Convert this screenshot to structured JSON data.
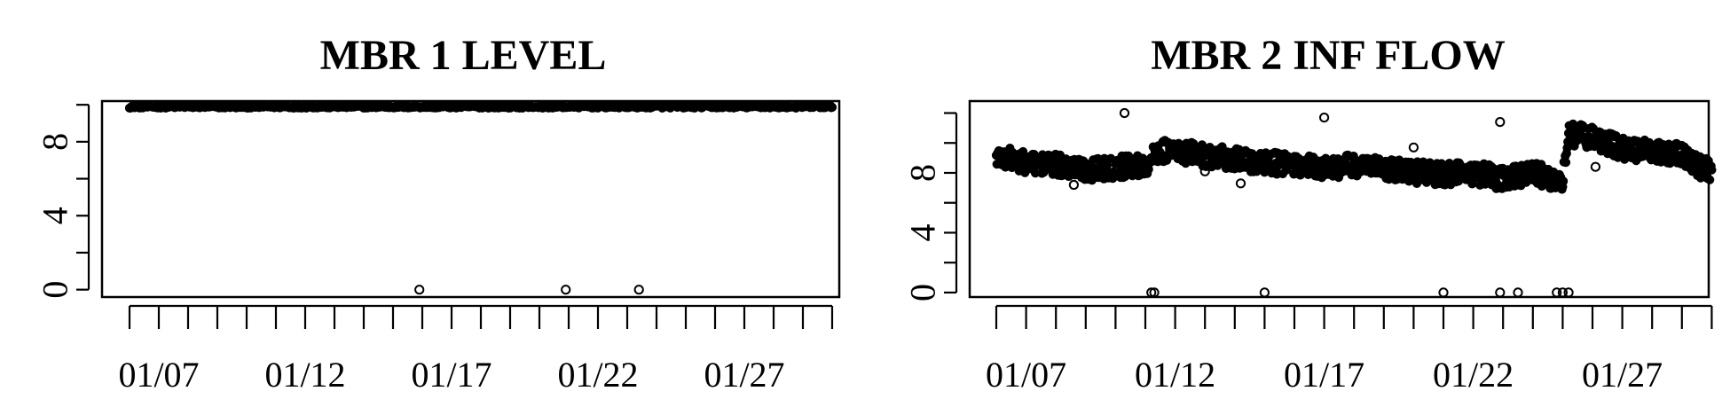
{
  "chart_data": [
    {
      "type": "scatter",
      "title": "MBR 1 LEVEL",
      "xlabel": "",
      "ylabel": "",
      "ylim": [
        -0.4,
        10.2
      ],
      "xlim": [
        "2024-01-05",
        "2024-01-31"
      ],
      "y_tick_labels": [
        "0",
        "4",
        "8"
      ],
      "x_tick_labels": [
        "01/07",
        "01/12",
        "01/17",
        "01/22",
        "01/27"
      ],
      "marker": "open-circle",
      "series": [
        {
          "x_start": "2024-01-06",
          "x_end": "2024-01-30",
          "y_mean": 9.9,
          "y_spread": 0.08
        }
      ],
      "outliers": [
        {
          "x": "2024-01-15.9",
          "y": 0
        },
        {
          "x": "2024-01-20.9",
          "y": 0
        },
        {
          "x": "2024-01-23.4",
          "y": 0
        }
      ]
    },
    {
      "type": "scatter",
      "title": "MBR 2 INF FLOW",
      "xlabel": "",
      "ylabel": "",
      "ylim": [
        -0.3,
        12.8
      ],
      "xlim": [
        "2024-01-05",
        "2024-01-31"
      ],
      "y_tick_labels": [
        "0",
        "4",
        "8"
      ],
      "x_tick_labels": [
        "01/07",
        "01/12",
        "01/17",
        "01/22",
        "01/27"
      ],
      "marker": "open-circle",
      "series_profile": [
        {
          "x": "2024-01-06.0",
          "y": 9.1
        },
        {
          "x": "2024-01-07.0",
          "y": 8.7
        },
        {
          "x": "2024-01-08.0",
          "y": 8.5
        },
        {
          "x": "2024-01-09.0",
          "y": 8.2
        },
        {
          "x": "2024-01-10.0",
          "y": 8.4
        },
        {
          "x": "2024-01-11.0",
          "y": 8.5
        },
        {
          "x": "2024-01-11.5",
          "y": 9.5
        },
        {
          "x": "2024-01-12.5",
          "y": 9.3
        },
        {
          "x": "2024-01-14.0",
          "y": 8.9
        },
        {
          "x": "2024-01-15.0",
          "y": 8.7
        },
        {
          "x": "2024-01-16.0",
          "y": 8.5
        },
        {
          "x": "2024-01-17.0",
          "y": 8.3
        },
        {
          "x": "2024-01-18.0",
          "y": 8.5
        },
        {
          "x": "2024-01-19.0",
          "y": 8.2
        },
        {
          "x": "2024-01-21.0",
          "y": 7.9
        },
        {
          "x": "2024-01-22.0",
          "y": 8.0
        },
        {
          "x": "2024-01-23.0",
          "y": 7.6
        },
        {
          "x": "2024-01-24.0",
          "y": 8.0
        },
        {
          "x": "2024-01-25.0",
          "y": 7.4
        },
        {
          "x": "2024-01-25.2",
          "y": 10.6
        },
        {
          "x": "2024-01-26.0",
          "y": 10.4
        },
        {
          "x": "2024-01-27.0",
          "y": 9.6
        },
        {
          "x": "2024-01-28.0",
          "y": 9.4
        },
        {
          "x": "2024-01-29.0",
          "y": 9.2
        },
        {
          "x": "2024-01-29.6",
          "y": 8.4
        },
        {
          "x": "2024-01-30.0",
          "y": 8.2
        }
      ],
      "outliers": [
        {
          "x": "2024-01-08.6",
          "y": 7.2
        },
        {
          "x": "2024-01-10.3",
          "y": 12.0
        },
        {
          "x": "2024-01-11.2",
          "y": 0
        },
        {
          "x": "2024-01-11.3",
          "y": 0
        },
        {
          "x": "2024-01-13.0",
          "y": 8.1
        },
        {
          "x": "2024-01-14.2",
          "y": 7.3
        },
        {
          "x": "2024-01-15.0",
          "y": 0
        },
        {
          "x": "2024-01-17.0",
          "y": 11.7
        },
        {
          "x": "2024-01-20.0",
          "y": 9.7
        },
        {
          "x": "2024-01-21.0",
          "y": 0
        },
        {
          "x": "2024-01-22.9",
          "y": 0
        },
        {
          "x": "2024-01-22.9",
          "y": 11.4
        },
        {
          "x": "2024-01-23.5",
          "y": 0
        },
        {
          "x": "2024-01-24.8",
          "y": 0
        },
        {
          "x": "2024-01-25.0",
          "y": 0
        },
        {
          "x": "2024-01-25.2",
          "y": 0
        },
        {
          "x": "2024-01-26.1",
          "y": 8.4
        }
      ]
    }
  ]
}
